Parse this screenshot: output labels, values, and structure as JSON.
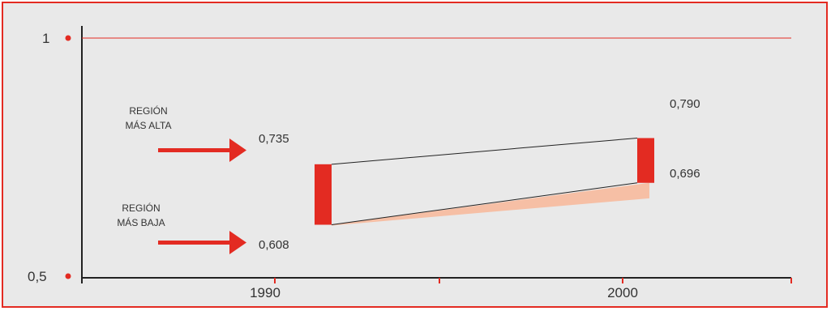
{
  "chart_data": {
    "type": "range-bar",
    "x": [
      "1990",
      "2000"
    ],
    "series": [
      {
        "name": "REGIÓN MÁS ALTA",
        "values": [
          0.735,
          0.79
        ]
      },
      {
        "name": "REGIÓN MÁS BAJA",
        "values": [
          0.608,
          0.696
        ]
      }
    ],
    "ylim": [
      0.5,
      1
    ],
    "yticks": [
      "1",
      "0,5"
    ],
    "value_labels": {
      "1990": {
        "high": "0,735",
        "low": "0,608"
      },
      "2000": {
        "high": "0,790",
        "low": "0,696"
      }
    },
    "annotations": {
      "high": [
        "REGIÓN",
        "MÁS ALTA"
      ],
      "low": [
        "REGIÓN",
        "MÁS BAJA"
      ]
    },
    "reference_line": 1,
    "colors": {
      "accent": "#e32b22",
      "band": "#f6bfa5",
      "frame_bg": "#e9e9e9",
      "axis": "#222222",
      "text": "#333333"
    }
  }
}
